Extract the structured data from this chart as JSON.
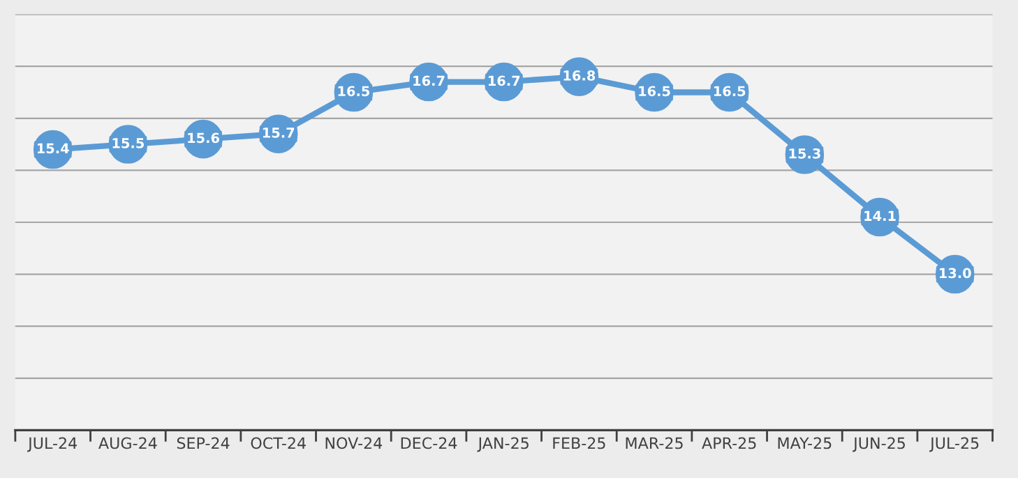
{
  "chart_data": {
    "type": "line",
    "categories": [
      "JUL-24",
      "AUG-24",
      "SEP-24",
      "OCT-24",
      "NOV-24",
      "DEC-24",
      "JAN-25",
      "FEB-25",
      "MAR-25",
      "APR-25",
      "MAY-25",
      "JUN-25",
      "JUL-25"
    ],
    "series": [
      {
        "color": "#5b9bd5",
        "values": [
          15.4,
          15.5,
          15.6,
          15.7,
          16.5,
          16.7,
          16.7,
          16.8,
          16.5,
          16.5,
          15.3,
          14.1,
          13.0
        ],
        "value_labels": [
          "15.4",
          "15.5",
          "15.6",
          "15.7",
          "16.5",
          "16.7",
          "16.7",
          "16.8",
          "16.5",
          "16.5",
          "15.3",
          "14.1",
          "13.0"
        ]
      }
    ],
    "ylim": [
      10,
      18
    ],
    "yticks": [
      {
        "value": 10,
        "label": null
      },
      {
        "value": 11,
        "label": null
      },
      {
        "value": 12,
        "label": null
      },
      {
        "value": 13,
        "label": null
      },
      {
        "value": 14,
        "label": null
      },
      {
        "value": 15,
        "label": null
      },
      {
        "value": 16,
        "label": null
      },
      {
        "value": 17,
        "label": null
      },
      {
        "value": 18,
        "label": null
      }
    ],
    "tick_labels": "x",
    "grid": "y",
    "marker": "circle",
    "line_style": "solid"
  }
}
